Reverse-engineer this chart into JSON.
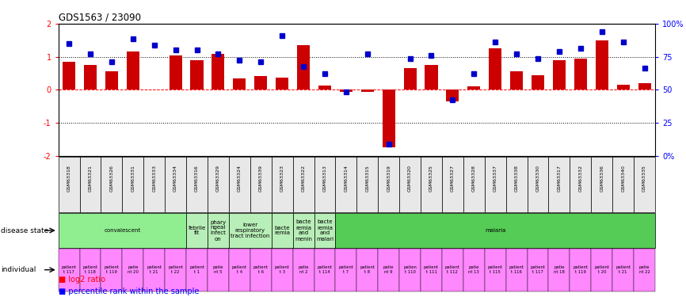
{
  "title": "GDS1563 / 23090",
  "samples": [
    "GSM63318",
    "GSM63321",
    "GSM63326",
    "GSM63331",
    "GSM63333",
    "GSM63334",
    "GSM63316",
    "GSM63329",
    "GSM63324",
    "GSM63339",
    "GSM63323",
    "GSM63322",
    "GSM63313",
    "GSM63314",
    "GSM63315",
    "GSM63319",
    "GSM63320",
    "GSM63325",
    "GSM63327",
    "GSM63328",
    "GSM63337",
    "GSM63338",
    "GSM63330",
    "GSM63317",
    "GSM63332",
    "GSM63336",
    "GSM63340",
    "GSM63335"
  ],
  "log2_ratio": [
    0.85,
    0.75,
    0.55,
    1.15,
    0.0,
    1.05,
    0.9,
    1.1,
    0.35,
    0.42,
    0.37,
    1.35,
    0.12,
    -0.07,
    -0.05,
    -1.75,
    0.65,
    0.75,
    -0.35,
    0.1,
    1.25,
    0.55,
    0.45,
    0.9,
    0.95,
    1.5,
    0.15,
    0.2
  ],
  "percentile": [
    1.4,
    1.1,
    0.85,
    1.55,
    1.35,
    1.2,
    1.2,
    1.1,
    0.9,
    0.85,
    1.65,
    0.7,
    0.5,
    -0.05,
    1.1,
    -1.65,
    0.95,
    1.05,
    -0.3,
    0.5,
    1.45,
    1.1,
    0.95,
    1.15,
    1.25,
    1.75,
    1.45,
    0.65
  ],
  "disease_state_groups": [
    {
      "label": "convalescent",
      "start": 0,
      "end": 6,
      "color": "#90EE90"
    },
    {
      "label": "febrile\nfit",
      "start": 6,
      "end": 7,
      "color": "#b8eeb8"
    },
    {
      "label": "phary\nngeal\ninfect\non",
      "start": 7,
      "end": 8,
      "color": "#b8eeb8"
    },
    {
      "label": "lower\nrespiratory\ntract infection",
      "start": 8,
      "end": 10,
      "color": "#b8eeb8"
    },
    {
      "label": "bacte\nremia",
      "start": 10,
      "end": 11,
      "color": "#b8eeb8"
    },
    {
      "label": "bacte\nremia\nand\nmenin",
      "start": 11,
      "end": 12,
      "color": "#b8eeb8"
    },
    {
      "label": "bacte\nremia\nand\nmalari",
      "start": 12,
      "end": 13,
      "color": "#b8eeb8"
    },
    {
      "label": "malaria",
      "start": 13,
      "end": 28,
      "color": "#55CC55"
    }
  ],
  "individual_color": "#FF88FF",
  "bar_color": "#CC0000",
  "dot_color": "#0000CC",
  "ylim_left": [
    -2,
    2
  ],
  "yticks_left": [
    -2,
    -1,
    0,
    1,
    2
  ],
  "ytick_labels_right": [
    "0%",
    "25",
    "50",
    "75",
    "100%"
  ],
  "individual_labels": [
    "patient\nt 117",
    "patient\nt 118",
    "patient\nt 119",
    "patie\nnt 20",
    "patient\nt 21",
    "patient\nt 22",
    "patient\nt 1",
    "patie\nnt 5",
    "patient\nt 4",
    "patient\nt 6",
    "patient\nt 3",
    "patie\nnt 2",
    "patient\nt 114",
    "patient\nt 7",
    "patient\nt 8",
    "patie\nnt 9",
    "patien\nt 110",
    "patient\nt 111",
    "patient\nt 112",
    "patie\nnt 13",
    "patient\nt 115",
    "patient\nt 116",
    "patient\nt 117",
    "patie\nnt 18",
    "patient\nt 119",
    "patient\nt 20",
    "patient\nt 21",
    "patie\nnt 22"
  ]
}
